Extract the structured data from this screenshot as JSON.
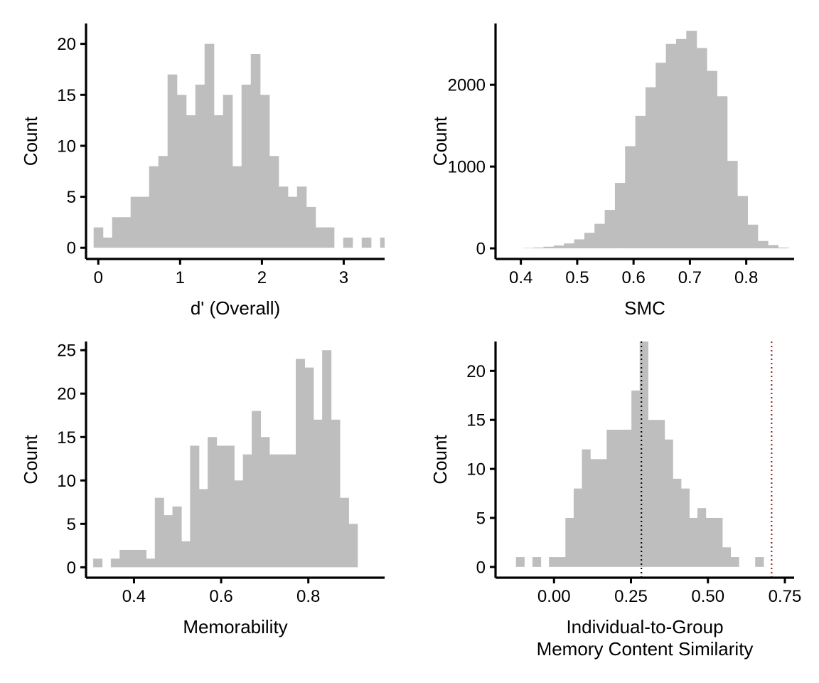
{
  "colors": {
    "bar": "#bebebe",
    "axis": "#000000",
    "ref_black": "#000000",
    "ref_red": "#8b1a1a"
  },
  "chart_data": [
    {
      "type": "bar",
      "xlabel": [
        "d' (Overall)"
      ],
      "ylabel": "Count",
      "xlim": [
        -0.15,
        3.5
      ],
      "ylim": [
        -1.1,
        22
      ],
      "xticks": [
        0,
        1,
        2,
        3
      ],
      "yticks": [
        0,
        5,
        10,
        15,
        20
      ],
      "bin_width": 0.113,
      "bins_start": -0.057,
      "values": [
        2,
        1,
        3,
        3,
        5,
        5,
        8,
        9,
        17,
        15,
        13,
        16,
        20,
        13,
        15,
        8,
        16,
        19,
        15,
        9,
        6,
        5,
        6,
        4,
        2,
        2,
        0,
        1,
        0,
        1,
        0,
        1,
        0,
        1
      ],
      "grid": false
    },
    {
      "type": "bar",
      "xlabel": [
        "SMC"
      ],
      "ylabel": "Count",
      "xlim": [
        0.355,
        0.885
      ],
      "ylim": [
        -130,
        2750
      ],
      "xticks": [
        0.4,
        0.5,
        0.6,
        0.7,
        0.8
      ],
      "yticks": [
        0,
        1000,
        2000
      ],
      "bin_width": 0.0181,
      "bins_start": 0.404,
      "values": [
        5,
        10,
        20,
        35,
        60,
        110,
        190,
        300,
        470,
        800,
        1250,
        1620,
        1970,
        2270,
        2500,
        2560,
        2660,
        2450,
        2170,
        1860,
        1070,
        640,
        290,
        90,
        40,
        10
      ],
      "grid": false
    },
    {
      "type": "bar",
      "xlabel": [
        "Memorability"
      ],
      "ylabel": "Count",
      "xlim": [
        0.29,
        0.975
      ],
      "ylim": [
        -1.2,
        26
      ],
      "xticks": [
        0.4,
        0.6,
        0.8
      ],
      "yticks": [
        0,
        5,
        10,
        15,
        20,
        25
      ],
      "bin_width": 0.0202,
      "bins_start": 0.3065,
      "values": [
        1,
        0,
        1,
        2,
        2,
        2,
        1,
        8,
        6,
        7,
        3,
        14,
        9,
        15,
        14,
        14,
        10,
        13,
        18,
        15,
        13,
        13,
        13,
        24,
        23,
        17,
        25,
        17,
        8,
        5
      ],
      "grid": false
    },
    {
      "type": "bar",
      "xlabel": [
        "Individual-to-Group",
        "Memory Content Similarity"
      ],
      "ylabel": "Count",
      "xlim": [
        -0.19,
        0.78
      ],
      "ylim": [
        -1.1,
        23
      ],
      "xticks": [
        0.0,
        0.25,
        0.5,
        0.75
      ],
      "xtick_labels": [
        "0.00",
        "0.25",
        "0.50",
        "0.75"
      ],
      "yticks": [
        0,
        5,
        10,
        15,
        20
      ],
      "bin_width": 0.0268,
      "bins_start": -0.1237,
      "values": [
        1,
        0,
        1,
        0,
        1,
        1,
        5,
        8,
        12,
        11,
        11,
        14,
        14,
        14,
        18,
        25,
        15,
        15,
        13,
        9,
        8,
        5,
        6,
        5,
        5,
        2,
        1,
        0,
        0,
        1
      ],
      "reference_lines": [
        {
          "x": 0.284,
          "color": "#000000"
        },
        {
          "x": 0.707,
          "color": "#8b1a1a"
        }
      ],
      "grid": false
    }
  ]
}
